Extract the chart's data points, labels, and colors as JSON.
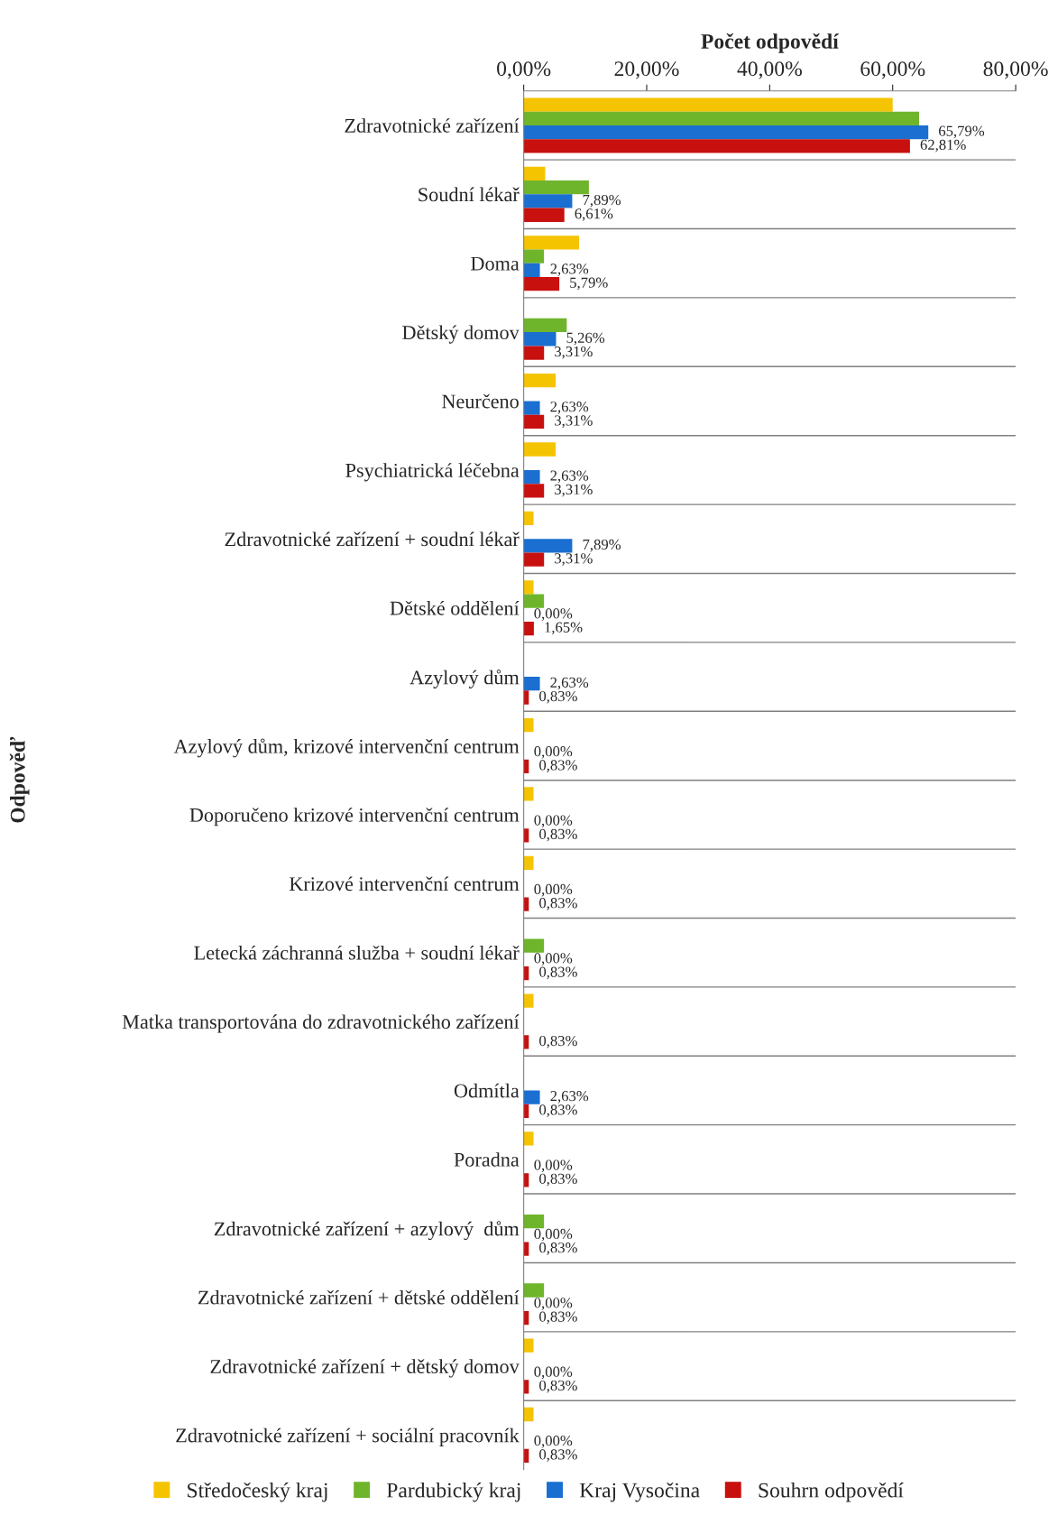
{
  "chart_data": {
    "type": "bar",
    "orientation": "horizontal",
    "xlabel": "Počet odpovědí",
    "ylabel": "Odpověď",
    "categories": [
      "Zdravotnické zařízení",
      "Soudní lékař",
      "Doma",
      "Dětský domov",
      "Neurčeno",
      "Psychiatrická léčebna",
      "Zdravotnické zařízení + soudní lékař",
      "Dětské oddělení",
      "Azylový dům",
      "Azylový dům, krizové intervenční centrum",
      "Doporučeno krizové intervenční centrum",
      "Krizové intervenční centrum",
      "Letecká záchranná služba + soudní lékař",
      "Matka transportována do zdravotnického zařízení",
      "Odmítla",
      "Poradna",
      "Zdravotnické zařízení + azylový  dům",
      "Zdravotnické zařízení + dětské oddělení",
      "Zdravotnické zařízení + dětský domov",
      "Zdravotnické zařízení + sociální pracovník"
    ],
    "series": [
      {
        "name": "Středočeský kraj",
        "color": "#f5c400",
        "values": [
          60.0,
          3.5,
          9.0,
          0,
          5.2,
          5.2,
          1.6,
          1.6,
          0,
          1.6,
          1.6,
          1.6,
          0,
          1.6,
          0,
          1.6,
          0,
          0,
          1.6,
          1.6
        ]
      },
      {
        "name": "Pardubický kraj",
        "color": "#6fb52c",
        "values": [
          64.3,
          10.6,
          3.3,
          7.0,
          0,
          0,
          0,
          3.3,
          0,
          0,
          0,
          0,
          3.3,
          0,
          0,
          0,
          3.3,
          3.3,
          0,
          0
        ]
      },
      {
        "name": "Kraj Vysočina",
        "color": "#1a6fd0",
        "values": [
          65.79,
          7.89,
          2.63,
          5.26,
          2.63,
          2.63,
          7.89,
          0.0,
          2.63,
          0.0,
          0.0,
          0.0,
          0.0,
          0.0,
          2.63,
          0.0,
          0.0,
          0.0,
          0.0,
          0.0
        ],
        "value_labels": [
          "65,79%",
          "7,89%",
          "2,63%",
          "5,26%",
          "2,63%",
          "2,63%",
          "7,89%",
          "0,00%",
          "2,63%",
          "0,00%",
          "0,00%",
          "0,00%",
          "0,00%",
          null,
          "2,63%",
          "0,00%",
          "0,00%",
          "0,00%",
          "0,00%",
          "0,00%"
        ]
      },
      {
        "name": "Souhrn odpovědí",
        "color": "#c8100f",
        "values": [
          62.81,
          6.61,
          5.79,
          3.31,
          3.31,
          3.31,
          3.31,
          1.65,
          0.83,
          0.83,
          0.83,
          0.83,
          0.83,
          0.83,
          0.83,
          0.83,
          0.83,
          0.83,
          0.83,
          0.83
        ],
        "value_labels": [
          "62,81%",
          "6,61%",
          "5,79%",
          "3,31%",
          "3,31%",
          "3,31%",
          "3,31%",
          "1,65%",
          "0,83%",
          "0,83%",
          "0,83%",
          "0,83%",
          "0,83%",
          "0,83%",
          "0,83%",
          "0,83%",
          "0,83%",
          "0,83%",
          "0,83%",
          "0,83%"
        ]
      }
    ],
    "xlim": [
      0,
      80
    ],
    "xticks": [
      {
        "value": 0,
        "label": "0,00%"
      },
      {
        "value": 20,
        "label": "20,00%"
      },
      {
        "value": 40,
        "label": "40,00%"
      },
      {
        "value": 60,
        "label": "60,00%"
      },
      {
        "value": 80,
        "label": "80,00%"
      }
    ],
    "grid": "y",
    "legend": "bottom"
  }
}
